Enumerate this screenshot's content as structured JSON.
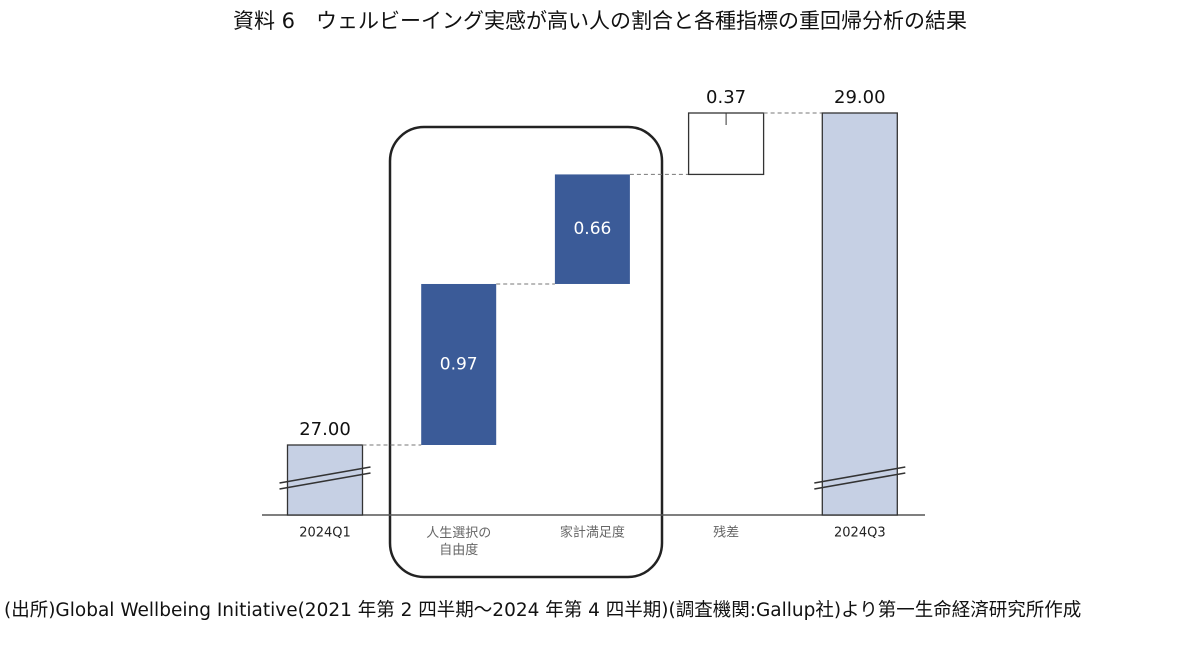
{
  "chart_data": {
    "type": "waterfall",
    "title": "資料 6　ウェルビーイング実感が高い人の割合と各種指標の重回帰分析の結果",
    "categories": [
      "2024Q1",
      "人生選択の\n自由度",
      "家計満足度",
      "残差",
      "2024Q3"
    ],
    "values": [
      27,
      0.97,
      0.66,
      0.37,
      29
    ],
    "value_labels": [
      "27.00",
      "0.97",
      "0.66",
      "0.37",
      "29.00"
    ],
    "kinds": [
      "total",
      "delta",
      "delta",
      "residual",
      "total"
    ],
    "colors": {
      "total": "#c6d0e4",
      "delta": "#3b5b98",
      "residual": "#ffffff"
    },
    "source": "(出所)Global Wellbeing Initiative(2021 年第 2 四半期～2024 年第 4 四半期)(調査機関:Gallup社)より第一生命経済研究所作成"
  }
}
